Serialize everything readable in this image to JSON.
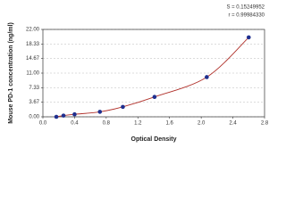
{
  "chart_data": {
    "type": "scatter",
    "annotations": [
      "S = 0.15249952",
      "r = 0.99984330"
    ],
    "x_label": "Optical Density",
    "y_label": "Mouse PD-1 concentration (ng/ml)",
    "series": [
      {
        "color": "#1f2f8f",
        "line_color": "#b0302a",
        "x": [
          0.17,
          0.26,
          0.4,
          0.72,
          1.01,
          1.41,
          2.07,
          2.6
        ],
        "values": [
          0,
          0.31,
          0.63,
          1.25,
          2.5,
          5,
          10,
          20
        ]
      }
    ],
    "xlim": [
      0,
      2.8
    ],
    "xticks": [
      {
        "value": 0,
        "label": "0.0"
      },
      0.4,
      0.8,
      1.2,
      1.6,
      {
        "value": 2,
        "label": "2.0"
      },
      2.4,
      2.8
    ],
    "ylim": [
      0,
      22
    ],
    "yticks": [
      {
        "value": 0,
        "label": "0.00"
      },
      3.67,
      7.33,
      {
        "value": 11,
        "label": "11.00"
      },
      14.67,
      18.33,
      {
        "value": 22,
        "label": "22.00"
      }
    ],
    "grid": true
  }
}
